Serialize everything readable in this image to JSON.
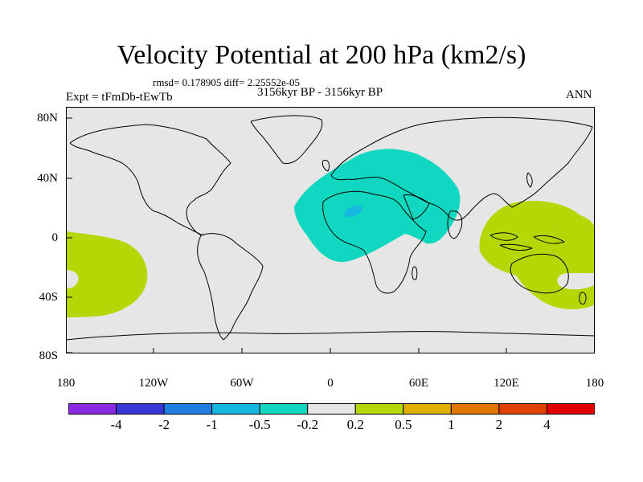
{
  "title": "Velocity Potential at 200 hPa (km2/s)",
  "stats_line": "rmsd= 0.178905 diff= 2.25552e-05",
  "period": "3156kyr BP - 3156kyr BP",
  "experiment": "Expt = tFmDb-tEwTb",
  "season": "ANN",
  "lat_labels": [
    "80N",
    "40N",
    "0",
    "40S",
    "80S"
  ],
  "lon_labels": [
    "180",
    "120W",
    "60W",
    "0",
    "60E",
    "120E",
    "180"
  ],
  "colorbar": {
    "labels": [
      "-4",
      "-2",
      "-1",
      "-0.5",
      "-0.2",
      "0.2",
      "0.5",
      "1",
      "2",
      "4"
    ],
    "colors": [
      "#8a2be2",
      "#3838d8",
      "#1e7fe0",
      "#16b8e0",
      "#10d8c0",
      "#e6e6e6",
      "#b4d806",
      "#e0b000",
      "#e07800",
      "#e04000",
      "#e00000"
    ]
  },
  "colors": {
    "background": "#e6e6e6",
    "negative_fill": "#10d8c0",
    "negative_core": "#16b8e0",
    "positive_fill": "#b4d806"
  }
}
